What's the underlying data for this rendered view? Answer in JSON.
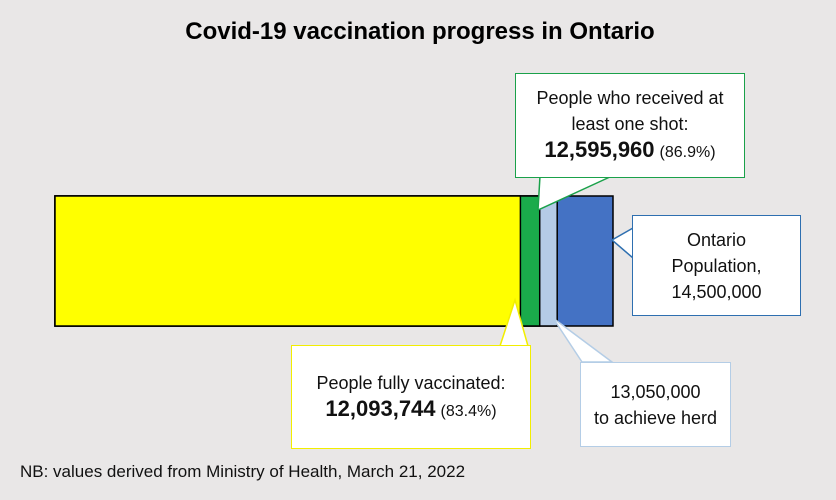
{
  "chart_data": {
    "type": "bar",
    "title": "Covid-19 vaccination progress in Ontario",
    "bars": [
      {
        "name": "People fully vaccinated:",
        "value": 12093744,
        "value_label": "12,093,744",
        "percent": {
          "value": 83.4,
          "label": "(83.4%)"
        },
        "color": "#ffff00"
      },
      {
        "name": "People who received at least one shot:",
        "value": 12595960,
        "value_label": "12,595,960",
        "percent": {
          "value": 86.9,
          "label": "(86.9%)"
        },
        "color": "#1aab4b"
      },
      {
        "name": "to achieve herd",
        "value": 13050000,
        "value_label": "13,050,000",
        "color": "#b4cbe6"
      },
      {
        "name": "Ontario Population,",
        "value": 14500000,
        "value_label": "14,500,000",
        "color": "#4472c4"
      }
    ],
    "note": "NB: values derived from Ministry of Health, March 21, 2022"
  }
}
